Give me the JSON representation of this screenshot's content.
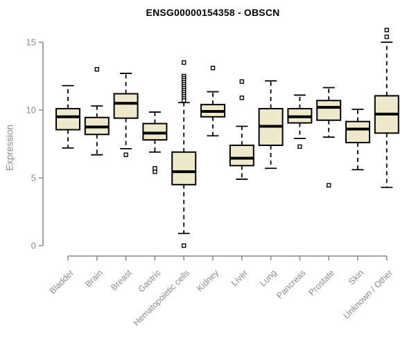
{
  "chart_data": {
    "type": "boxplot",
    "title": "ENSG00000154358 - OBSCN",
    "ylabel": "Expression",
    "xlabel": "",
    "ylim": [
      0,
      15
    ],
    "yticks": [
      0,
      5,
      10,
      15
    ],
    "grid": false,
    "legend": "none",
    "categories": [
      "Bladder",
      "Brain",
      "Breast",
      "Gastric",
      "Hematopoietic cells",
      "Kidney",
      "Liver",
      "Lung",
      "Pancreas",
      "Prostate",
      "Skin",
      "Unknown / Other"
    ],
    "series": [
      {
        "name": "Bladder",
        "whisker_low": 7.2,
        "q1": 8.55,
        "median": 9.5,
        "q3": 10.1,
        "whisker_high": 11.8,
        "outliers": []
      },
      {
        "name": "Brain",
        "whisker_low": 6.7,
        "q1": 8.2,
        "median": 8.75,
        "q3": 9.45,
        "whisker_high": 10.3,
        "outliers": [
          13.0
        ]
      },
      {
        "name": "Breast",
        "whisker_low": 7.15,
        "q1": 9.4,
        "median": 10.5,
        "q3": 11.2,
        "whisker_high": 12.7,
        "outliers": [
          6.7
        ]
      },
      {
        "name": "Gastric",
        "whisker_low": 6.9,
        "q1": 7.8,
        "median": 8.3,
        "q3": 9.0,
        "whisker_high": 9.85,
        "outliers": [
          5.7,
          5.45
        ]
      },
      {
        "name": "Hematopoietic cells",
        "whisker_low": 0.9,
        "q1": 4.5,
        "median": 5.45,
        "q3": 6.9,
        "whisker_high": 10.55,
        "outliers": [
          13.5,
          12.5,
          12.35,
          12.2,
          12.05,
          11.9,
          11.75,
          11.6,
          11.45,
          11.3,
          11.15,
          11.0,
          10.85,
          10.7,
          0
        ]
      },
      {
        "name": "Kidney",
        "whisker_low": 8.1,
        "q1": 9.5,
        "median": 9.9,
        "q3": 10.4,
        "whisker_high": 11.35,
        "outliers": [
          13.1
        ]
      },
      {
        "name": "Liver",
        "whisker_low": 4.9,
        "q1": 5.9,
        "median": 6.45,
        "q3": 7.4,
        "whisker_high": 8.8,
        "outliers": [
          12.1,
          10.9
        ]
      },
      {
        "name": "Lung",
        "whisker_low": 5.7,
        "q1": 7.4,
        "median": 8.8,
        "q3": 10.1,
        "whisker_high": 12.15,
        "outliers": []
      },
      {
        "name": "Pancreas",
        "whisker_low": 7.9,
        "q1": 9.05,
        "median": 9.5,
        "q3": 10.1,
        "whisker_high": 11.1,
        "outliers": [
          7.3
        ]
      },
      {
        "name": "Prostate",
        "whisker_low": 8.0,
        "q1": 9.25,
        "median": 10.2,
        "q3": 10.7,
        "whisker_high": 11.65,
        "outliers": [
          4.45
        ]
      },
      {
        "name": "Skin",
        "whisker_low": 5.6,
        "q1": 7.6,
        "median": 8.6,
        "q3": 9.15,
        "whisker_high": 10.05,
        "outliers": []
      },
      {
        "name": "Unknown / Other",
        "whisker_low": 4.3,
        "q1": 8.3,
        "median": 9.7,
        "q3": 11.05,
        "whisker_high": 15.0,
        "outliers": [
          15.4,
          15.9
        ]
      }
    ],
    "colors": {
      "box_fill": "#EEE8CD",
      "box_border": "#000000",
      "median": "#000000",
      "axis": "#878787",
      "text": "#8a8a8a",
      "title": "#000000",
      "background": "#ffffff"
    }
  }
}
